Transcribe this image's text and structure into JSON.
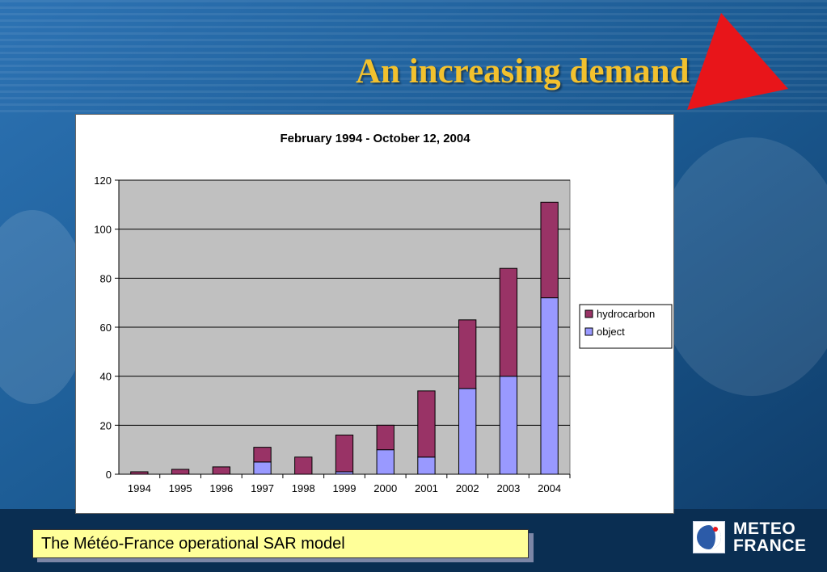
{
  "slide": {
    "title": "An increasing demand",
    "caption": "The Météo-France operational SAR model",
    "logo": {
      "line1": "METEO",
      "line2": "FRANCE",
      "icon": "meteo-france-globe-icon"
    },
    "colors": {
      "title": "#F2C12E",
      "background": "#1B5A92",
      "triangle": "#E8151A",
      "caption_box": "#FFFF99"
    }
  },
  "chart_data": {
    "type": "bar",
    "stacked": true,
    "title": "February 1994 - October 12, 2004",
    "xlabel": "",
    "ylabel": "",
    "categories": [
      "1994",
      "1995",
      "1996",
      "1997",
      "1998",
      "1999",
      "2000",
      "2001",
      "2002",
      "2003",
      "2004"
    ],
    "series": [
      {
        "name": "object",
        "color": "#9999FF",
        "values": [
          0,
          0,
          0,
          5,
          0,
          1,
          10,
          7,
          35,
          40,
          72
        ]
      },
      {
        "name": "hydrocarbon",
        "color": "#993366",
        "values": [
          1,
          2,
          3,
          6,
          7,
          15,
          10,
          27,
          28,
          44,
          39
        ]
      }
    ],
    "ylim": [
      0,
      120
    ],
    "yticks": [
      0,
      20,
      40,
      60,
      80,
      100,
      120
    ],
    "grid": true,
    "plot_background": "#C0C0C0",
    "legend": {
      "position": "right",
      "entries": [
        "hydrocarbon",
        "object"
      ]
    }
  }
}
